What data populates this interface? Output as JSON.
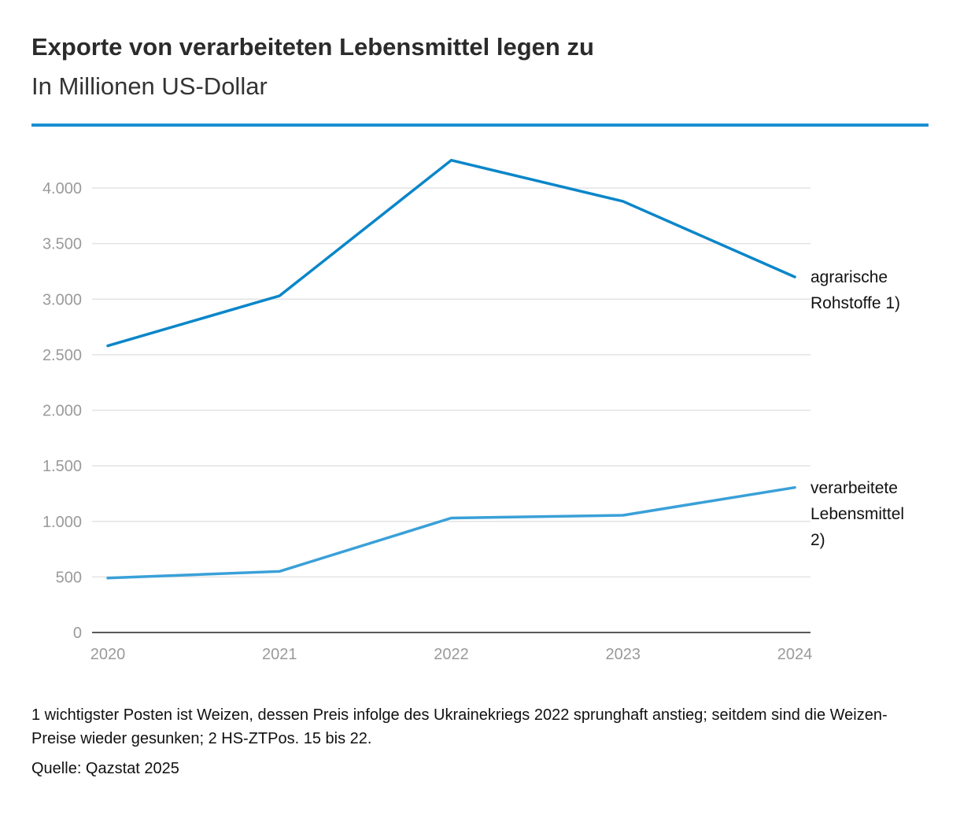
{
  "header": {
    "title": "Exporte von verarbeiteten Lebensmittel legen zu",
    "subtitle": "In Millionen US-Dollar"
  },
  "chart_data": {
    "type": "line",
    "title": "Exporte von verarbeiteten Lebensmittel legen zu",
    "subtitle": "In Millionen US-Dollar",
    "x": [
      "2020",
      "2021",
      "2022",
      "2023",
      "2024"
    ],
    "ylim": [
      0,
      4250
    ],
    "yticks": [
      0,
      500,
      1000,
      1500,
      2000,
      2500,
      3000,
      3500,
      4000
    ],
    "ytick_labels": [
      "0",
      "500",
      "1.000",
      "1.500",
      "2.000",
      "2.500",
      "3.000",
      "3.500",
      "4.000"
    ],
    "grid": true,
    "legend": "direct labels at line ends",
    "series": [
      {
        "name": "agrarische Rohstoffe 1)",
        "label_lines": [
          "agrarische",
          "Rohstoffe 1)"
        ],
        "color": "#0a86c9",
        "values": [
          2580,
          3030,
          4250,
          3880,
          3200
        ]
      },
      {
        "name": "verarbeitete Lebensmittel 2)",
        "label_lines": [
          "verarbeitete",
          "Lebensmittel",
          "2)"
        ],
        "color": "#3aa0d8",
        "values": [
          490,
          550,
          1030,
          1055,
          1305
        ]
      }
    ]
  },
  "footnote": "1 wichtigster Posten ist Weizen, dessen Preis infolge des Ukrainekriegs 2022 sprunghaft anstieg; seitdem sind die Weizen-Preise wieder gesunken; 2 HS-ZTPos. 15 bis 22.",
  "source": "Quelle: Qazstat 2025"
}
